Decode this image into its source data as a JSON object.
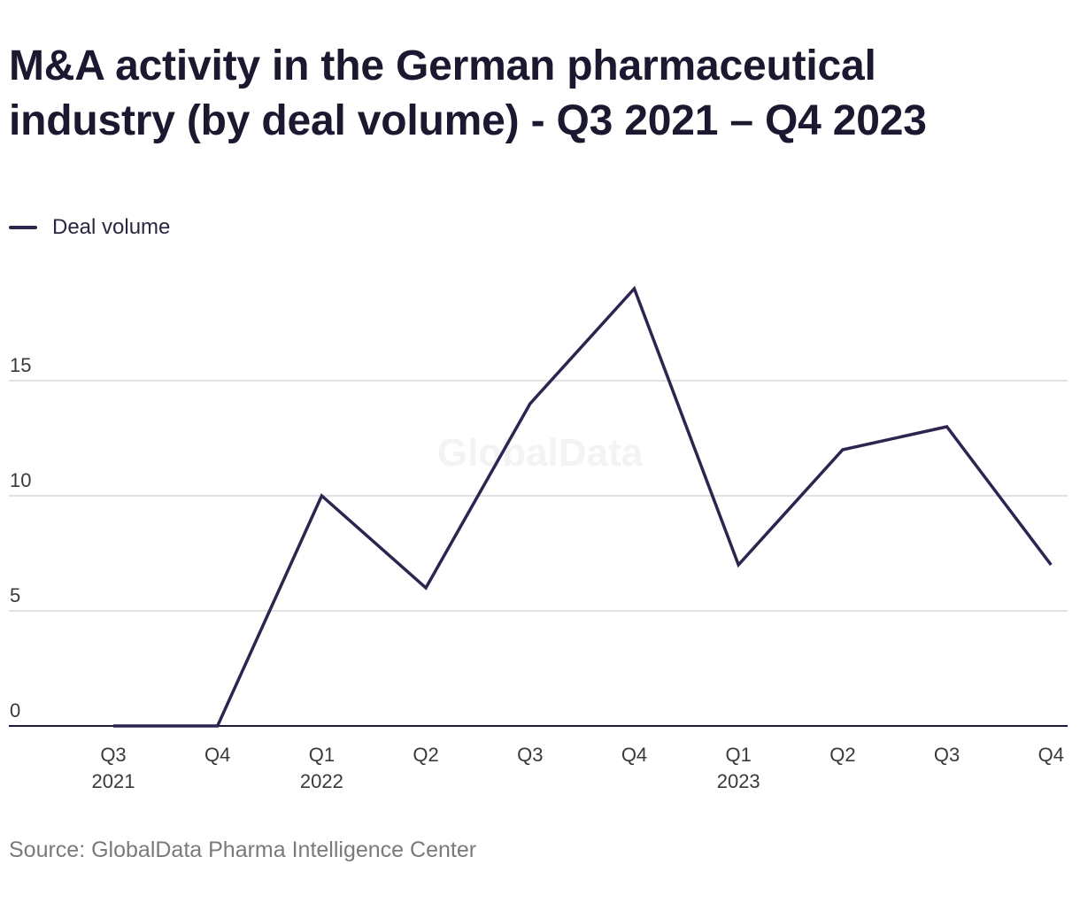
{
  "title": "M&A activity in the German pharmaceutical industry (by deal volume) - Q3 2021 – Q4 2023",
  "source": "Source: GlobalData Pharma Intelligence Center",
  "watermark": "GlobalData",
  "colors": {
    "line": "#2f2350",
    "grid": "#d9d9d9",
    "axis": "#1d1a33"
  },
  "chart_data": {
    "type": "line",
    "categories": [
      "Q3 2021",
      "Q4 2021",
      "Q1 2022",
      "Q2 2022",
      "Q3 2022",
      "Q4 2022",
      "Q1 2023",
      "Q2 2023",
      "Q3 2023",
      "Q4 2023"
    ],
    "x_tick_labels": [
      [
        "Q3",
        "2021"
      ],
      [
        "Q4"
      ],
      [
        "Q1",
        "2022"
      ],
      [
        "Q2"
      ],
      [
        "Q3"
      ],
      [
        "Q4"
      ],
      [
        "Q1",
        "2023"
      ],
      [
        "Q2"
      ],
      [
        "Q3"
      ],
      [
        "Q4"
      ]
    ],
    "series": [
      {
        "name": "Deal volume",
        "values": [
          0,
          0,
          10,
          6,
          14,
          19,
          7,
          12,
          13,
          7
        ]
      }
    ],
    "y_ticks": [
      0,
      5,
      10,
      15
    ],
    "ylim": [
      0,
      20
    ],
    "grid": true,
    "legend": "top-left"
  }
}
